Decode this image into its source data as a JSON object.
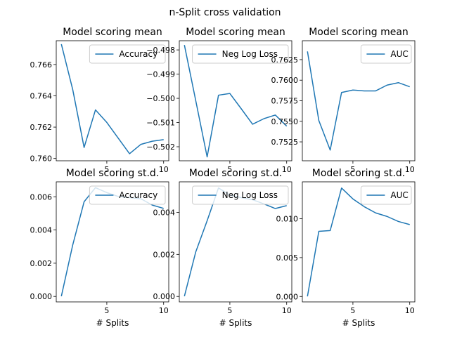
{
  "figure": {
    "suptitle": "n-Split cross validation"
  },
  "chart_data": [
    {
      "type": "line",
      "title": "Model scoring mean",
      "xlabel": "",
      "ylabel": "",
      "x": [
        1,
        2,
        3,
        4,
        5,
        6,
        7,
        8,
        9,
        10
      ],
      "xlim": [
        0.55,
        10.45
      ],
      "xticks": [
        5,
        10
      ],
      "ylim": [
        0.75985,
        0.76752
      ],
      "yticks": [
        0.76,
        0.762,
        0.764,
        0.766
      ],
      "ytick_labels": [
        "0.760",
        "0.762",
        "0.764",
        "0.766"
      ],
      "series": [
        {
          "name": "Accuracy",
          "values": [
            0.7673,
            0.7644,
            0.7607,
            0.7631,
            0.7623,
            0.7613,
            0.7603,
            0.7609,
            0.7611,
            0.7612
          ]
        }
      ],
      "legend": "top-right",
      "color": "#1f77b4"
    },
    {
      "type": "line",
      "title": "Model scoring mean",
      "xlabel": "",
      "ylabel": "",
      "x": [
        1,
        2,
        3,
        4,
        5,
        6,
        7,
        8,
        9,
        10
      ],
      "xlim": [
        0.55,
        10.45
      ],
      "xticks": [
        5,
        10
      ],
      "ylim": [
        -0.50258,
        -0.49762
      ],
      "yticks": [
        -0.502,
        -0.501,
        -0.5,
        -0.499,
        -0.498
      ],
      "ytick_labels": [
        "−0.502",
        "−0.501",
        "−0.500",
        "−0.499",
        "−0.498"
      ],
      "series": [
        {
          "name": "Neg Log Loss",
          "values": [
            -0.4978,
            -0.5001,
            -0.50242,
            -0.49987,
            -0.4998,
            -0.50043,
            -0.50107,
            -0.50084,
            -0.50069,
            -0.50115
          ]
        }
      ],
      "legend": "top-right",
      "color": "#1f77b4"
    },
    {
      "type": "line",
      "title": "Model scoring mean",
      "xlabel": "",
      "ylabel": "",
      "x": [
        1,
        2,
        3,
        4,
        5,
        6,
        7,
        8,
        9,
        10
      ],
      "xlim": [
        0.55,
        10.45
      ],
      "xticks": [
        5,
        10
      ],
      "ylim": [
        0.7502,
        0.7648
      ],
      "yticks": [
        0.7525,
        0.755,
        0.7575,
        0.76,
        0.7625
      ],
      "ytick_labels": [
        "0.7525",
        "0.7550",
        "0.7575",
        "0.7600",
        "0.7625"
      ],
      "series": [
        {
          "name": "AUC",
          "values": [
            0.7635,
            0.7551,
            0.7515,
            0.7585,
            0.7588,
            0.7587,
            0.7587,
            0.7594,
            0.7597,
            0.7592
          ]
        }
      ],
      "legend": "top-right",
      "color": "#1f77b4"
    },
    {
      "type": "line",
      "title": "Model scoring st.d.",
      "xlabel": "# Splits",
      "ylabel": "",
      "x": [
        1,
        2,
        3,
        4,
        5,
        6,
        7,
        8,
        9,
        10
      ],
      "xlim": [
        0.55,
        10.45
      ],
      "xticks": [
        5,
        10
      ],
      "xtick_labels": [
        "5",
        "10"
      ],
      "ylim": [
        -0.00033,
        0.0069
      ],
      "yticks": [
        0.0,
        0.002,
        0.004,
        0.006
      ],
      "ytick_labels": [
        "0.000",
        "0.002",
        "0.004",
        "0.006"
      ],
      "series": [
        {
          "name": "Accuracy",
          "values": [
            1e-05,
            0.0031,
            0.0057,
            0.00655,
            0.00625,
            0.00602,
            0.00595,
            0.00588,
            0.0055,
            0.0053
          ]
        }
      ],
      "legend": "top-right",
      "color": "#1f77b4"
    },
    {
      "type": "line",
      "title": "Model scoring st.d.",
      "xlabel": "# Splits",
      "ylabel": "",
      "x": [
        1,
        2,
        3,
        4,
        5,
        6,
        7,
        8,
        9,
        10
      ],
      "xlim": [
        0.55,
        10.45
      ],
      "xticks": [
        5,
        10
      ],
      "xtick_labels": [
        "5",
        "10"
      ],
      "ylim": [
        -0.00026,
        0.00545
      ],
      "yticks": [
        0.0,
        0.002,
        0.004
      ],
      "ytick_labels": [
        "0.000",
        "0.002",
        "0.004"
      ],
      "series": [
        {
          "name": "Neg Log Loss",
          "values": [
            1e-05,
            0.00212,
            0.0036,
            0.00516,
            0.00482,
            0.0047,
            0.0046,
            0.0044,
            0.00418,
            0.00432
          ]
        }
      ],
      "legend": "top-right",
      "color": "#1f77b4"
    },
    {
      "type": "line",
      "title": "Model scoring st.d.",
      "xlabel": "# Splits",
      "ylabel": "",
      "x": [
        1,
        2,
        3,
        4,
        5,
        6,
        7,
        8,
        9,
        10
      ],
      "xlim": [
        0.55,
        10.45
      ],
      "xticks": [
        5,
        10
      ],
      "xtick_labels": [
        "5",
        "10"
      ],
      "ylim": [
        -0.0007,
        0.01475
      ],
      "yticks": [
        0.0,
        0.005,
        0.01
      ],
      "ytick_labels": [
        "0.000",
        "0.005",
        "0.010"
      ],
      "series": [
        {
          "name": "AUC",
          "values": [
            1e-05,
            0.00838,
            0.00848,
            0.01395,
            0.01255,
            0.01155,
            0.01075,
            0.0103,
            0.00965,
            0.00925
          ]
        }
      ],
      "legend": "top-right",
      "color": "#1f77b4"
    }
  ]
}
